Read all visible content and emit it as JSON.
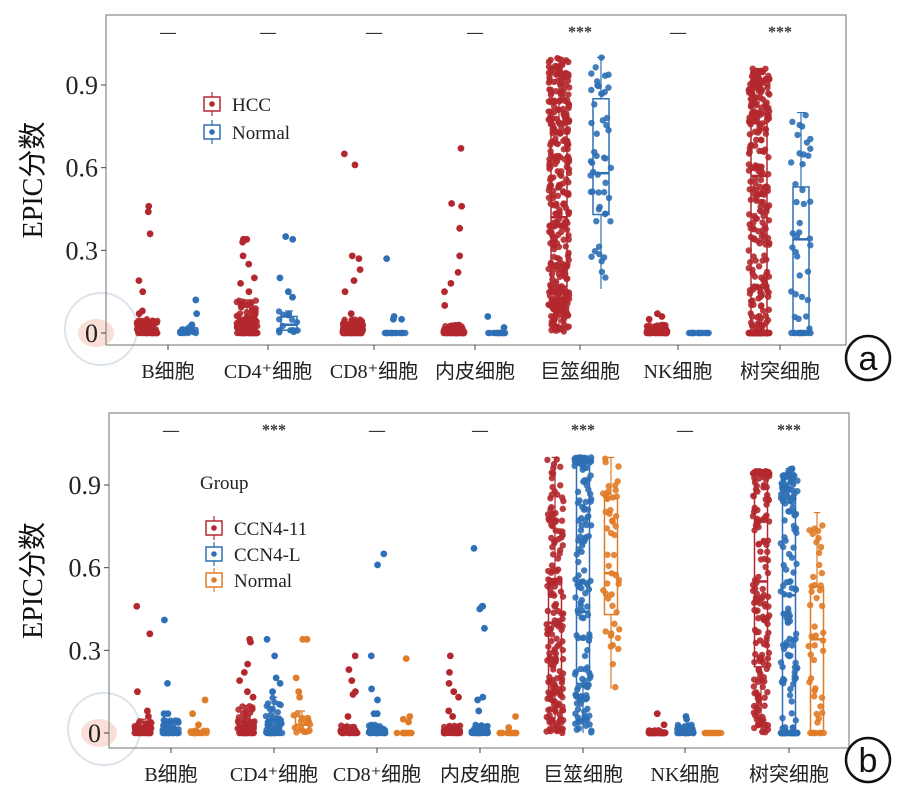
{
  "chart_data": [
    {
      "panel_label": "a",
      "type": "box+jitter",
      "ylabel": "EPIC分数",
      "ylim": [
        0,
        1.0
      ],
      "yticks": [
        "0",
        "0.3",
        "0.6",
        "0.9"
      ],
      "ytick_values": [
        0,
        0.3,
        0.6,
        0.9
      ],
      "categories": [
        "B细胞",
        "CD4⁺细胞",
        "CD8⁺细胞",
        "内皮细胞",
        "巨筮细胞",
        "NK细胞",
        "树突细胞"
      ],
      "significance": [
        "—",
        "—",
        "—",
        "—",
        "***",
        "—",
        "***"
      ],
      "legend_title": "",
      "legend_placement": "top-left",
      "series": [
        {
          "name": "HCC",
          "color": "#b2282e",
          "n": 360,
          "boxes": [
            {
              "lo": 0,
              "q1": 0,
              "med": 0,
              "q3": 0.02,
              "hi": 0.05,
              "outliers": [
                0.46,
                0.44,
                0.36,
                0.19,
                0.15,
                0.08,
                0.07
              ]
            },
            {
              "lo": 0,
              "q1": 0,
              "med": 0.01,
              "q3": 0.05,
              "hi": 0.12,
              "outliers": [
                0.34,
                0.34,
                0.33,
                0.28,
                0.25,
                0.2,
                0.18,
                0.15
              ]
            },
            {
              "lo": 0,
              "q1": 0,
              "med": 0,
              "q3": 0.02,
              "hi": 0.05,
              "outliers": [
                0.65,
                0.61,
                0.28,
                0.27,
                0.23,
                0.19,
                0.15,
                0.07
              ]
            },
            {
              "lo": 0,
              "q1": 0,
              "med": 0,
              "q3": 0.01,
              "hi": 0.03,
              "outliers": [
                0.67,
                0.47,
                0.46,
                0.38,
                0.28,
                0.22,
                0.18,
                0.15,
                0.1
              ]
            },
            {
              "lo": 0,
              "q1": 0.17,
              "med": 0.42,
              "q3": 0.76,
              "hi": 1.0,
              "outliers": []
            },
            {
              "lo": 0,
              "q1": 0,
              "med": 0,
              "q3": 0.01,
              "hi": 0.03,
              "outliers": [
                0.07,
                0.06,
                0.05
              ]
            },
            {
              "lo": 0,
              "q1": 0,
              "med": 0.57,
              "q3": 0.76,
              "hi": 0.96,
              "outliers": []
            }
          ]
        },
        {
          "name": "Normal",
          "color": "#2e6fb5",
          "n": 50,
          "boxes": [
            {
              "lo": 0,
              "q1": 0,
              "med": 0,
              "q3": 0.01,
              "hi": 0.02,
              "outliers": [
                0.12,
                0.07,
                0.03
              ]
            },
            {
              "lo": 0,
              "q1": 0.01,
              "med": 0.03,
              "q3": 0.06,
              "hi": 0.08,
              "outliers": [
                0.35,
                0.34,
                0.2,
                0.15,
                0.13
              ]
            },
            {
              "lo": 0,
              "q1": 0,
              "med": 0,
              "q3": 0,
              "hi": 0,
              "outliers": [
                0.27,
                0.06,
                0.05,
                0.05
              ]
            },
            {
              "lo": 0,
              "q1": 0,
              "med": 0,
              "q3": 0,
              "hi": 0,
              "outliers": [
                0.06,
                0.02
              ]
            },
            {
              "lo": 0.16,
              "q1": 0.43,
              "med": 0.58,
              "q3": 0.85,
              "hi": 1.0,
              "outliers": []
            },
            {
              "lo": 0,
              "q1": 0,
              "med": 0,
              "q3": 0,
              "hi": 0,
              "outliers": []
            },
            {
              "lo": 0,
              "q1": 0,
              "med": 0.34,
              "q3": 0.53,
              "hi": 0.8,
              "outliers": []
            }
          ]
        }
      ]
    },
    {
      "panel_label": "b",
      "type": "box+jitter",
      "ylabel": "EPIC分数",
      "ylim": [
        0,
        1.0
      ],
      "yticks": [
        "0",
        "0.3",
        "0.6",
        "0.9"
      ],
      "ytick_values": [
        0,
        0.3,
        0.6,
        0.9
      ],
      "categories": [
        "B细胞",
        "CD4⁺细胞",
        "CD8⁺细胞",
        "内皮细胞",
        "巨筮细胞",
        "NK细胞",
        "树突细胞"
      ],
      "significance": [
        "—",
        "***",
        "—",
        "—",
        "***",
        "—",
        "***"
      ],
      "legend_title": "Group",
      "legend_placement": "top-left",
      "series": [
        {
          "name": "CCN4-11",
          "color": "#b2282e",
          "n": 180,
          "boxes": [
            {
              "lo": 0,
              "q1": 0,
              "med": 0,
              "q3": 0.02,
              "hi": 0.05,
              "outliers": [
                0.46,
                0.36,
                0.15,
                0.08,
                0.06
              ]
            },
            {
              "lo": 0,
              "q1": 0,
              "med": 0.01,
              "q3": 0.04,
              "hi": 0.1,
              "outliers": [
                0.34,
                0.33,
                0.25,
                0.22,
                0.19,
                0.15,
                0.13
              ]
            },
            {
              "lo": 0,
              "q1": 0,
              "med": 0,
              "q3": 0.01,
              "hi": 0.03,
              "outliers": [
                0.28,
                0.23,
                0.19,
                0.15,
                0.14,
                0.06
              ]
            },
            {
              "lo": 0,
              "q1": 0,
              "med": 0,
              "q3": 0.01,
              "hi": 0.03,
              "outliers": [
                0.28,
                0.22,
                0.18,
                0.15,
                0.13,
                0.08,
                0.06
              ]
            },
            {
              "lo": 0,
              "q1": 0.15,
              "med": 0.4,
              "q3": 0.56,
              "hi": 1.0,
              "outliers": []
            },
            {
              "lo": 0,
              "q1": 0,
              "med": 0,
              "q3": 0,
              "hi": 0.01,
              "outliers": [
                0.07,
                0.03
              ]
            },
            {
              "lo": 0,
              "q1": 0.24,
              "med": 0.55,
              "q3": 0.94,
              "hi": 0.95,
              "outliers": []
            }
          ]
        },
        {
          "name": "CCN4-L",
          "color": "#2e6fb5",
          "n": 180,
          "boxes": [
            {
              "lo": 0,
              "q1": 0,
              "med": 0,
              "q3": 0.02,
              "hi": 0.05,
              "outliers": [
                0.41,
                0.18,
                0.07,
                0.07
              ]
            },
            {
              "lo": 0,
              "q1": 0,
              "med": 0.02,
              "q3": 0.06,
              "hi": 0.13,
              "outliers": [
                0.34,
                0.28,
                0.2,
                0.18,
                0.15
              ]
            },
            {
              "lo": 0,
              "q1": 0,
              "med": 0,
              "q3": 0.01,
              "hi": 0.03,
              "outliers": [
                0.65,
                0.61,
                0.28,
                0.16,
                0.12,
                0.07,
                0.07
              ]
            },
            {
              "lo": 0,
              "q1": 0,
              "med": 0,
              "q3": 0.01,
              "hi": 0.03,
              "outliers": [
                0.67,
                0.46,
                0.46,
                0.45,
                0.38,
                0.13,
                0.12,
                0.08
              ]
            },
            {
              "lo": 0,
              "q1": 0.18,
              "med": 0.44,
              "q3": 0.98,
              "hi": 1.0,
              "outliers": []
            },
            {
              "lo": 0,
              "q1": 0,
              "med": 0,
              "q3": 0.01,
              "hi": 0.03,
              "outliers": [
                0.06,
                0.05
              ]
            },
            {
              "lo": 0,
              "q1": 0,
              "med": 0.5,
              "q3": 0.85,
              "hi": 0.96,
              "outliers": []
            }
          ]
        },
        {
          "name": "Normal",
          "color": "#e07b27",
          "n": 50,
          "boxes": [
            {
              "lo": 0,
              "q1": 0,
              "med": 0,
              "q3": 0,
              "hi": 0.01,
              "outliers": [
                0.12,
                0.07,
                0.03
              ]
            },
            {
              "lo": 0,
              "q1": 0.01,
              "med": 0.03,
              "q3": 0.06,
              "hi": 0.08,
              "outliers": [
                0.34,
                0.34,
                0.2,
                0.15,
                0.13
              ]
            },
            {
              "lo": 0,
              "q1": 0,
              "med": 0,
              "q3": 0,
              "hi": 0,
              "outliers": [
                0.27,
                0.06,
                0.05,
                0.04
              ]
            },
            {
              "lo": 0,
              "q1": 0,
              "med": 0,
              "q3": 0,
              "hi": 0,
              "outliers": [
                0.06,
                0.02
              ]
            },
            {
              "lo": 0.16,
              "q1": 0.43,
              "med": 0.58,
              "q3": 0.85,
              "hi": 1.0,
              "outliers": []
            },
            {
              "lo": 0,
              "q1": 0,
              "med": 0,
              "q3": 0,
              "hi": 0,
              "outliers": []
            },
            {
              "lo": 0,
              "q1": 0,
              "med": 0.34,
              "q3": 0.53,
              "hi": 0.8,
              "outliers": []
            }
          ]
        }
      ]
    }
  ]
}
